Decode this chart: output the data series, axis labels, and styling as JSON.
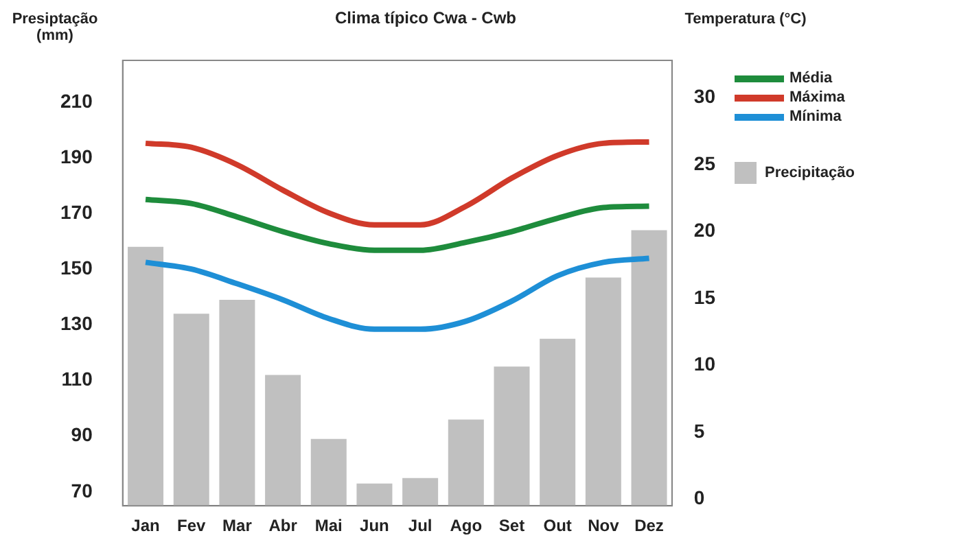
{
  "chart_data": {
    "type": "bar",
    "title": "Clima típico Cwa - Cwb",
    "ylabel": "Presiptação (mm)",
    "y2label": "Temperatura (°C)",
    "categories": [
      "Jan",
      "Fev",
      "Mar",
      "Abr",
      "Mai",
      "Jun",
      "Jul",
      "Ago",
      "Set",
      "Out",
      "Nov",
      "Dez"
    ],
    "series": [
      {
        "name": "Média",
        "type": "line",
        "axis": "y2",
        "color": "#1e8c3c",
        "values": [
          22.4,
          22.1,
          21.1,
          20,
          19.1,
          18.6,
          18.6,
          19.2,
          20,
          21,
          21.8,
          21.9
        ]
      },
      {
        "name": "Máxima",
        "type": "line",
        "axis": "y2",
        "color": "#d03a2a",
        "values": [
          26.6,
          26.3,
          25,
          23.1,
          21.4,
          20.5,
          20.5,
          21.9,
          24,
          25.7,
          26.6,
          26.7
        ]
      },
      {
        "name": "Mínima",
        "type": "line",
        "axis": "y2",
        "color": "#1e8fd6",
        "values": [
          17.7,
          17.2,
          16.1,
          14.9,
          13.5,
          12.7,
          12.7,
          13.3,
          14.8,
          16.7,
          17.7,
          18
        ]
      },
      {
        "name": "Precipitação",
        "color": "#c0c0c0",
        "values": [
          158,
          134,
          139,
          112,
          89,
          73,
          75,
          96,
          115,
          125,
          147,
          164
        ]
      }
    ],
    "ylim": [
      65,
      225
    ],
    "yticks": [
      70,
      90,
      110,
      130,
      150,
      170,
      190,
      210
    ],
    "y2lim": [
      -0.5,
      32.8
    ],
    "y2ticks": [
      0,
      5,
      10,
      15,
      20,
      25,
      30
    ],
    "grid": false,
    "legend": "right",
    "marker": "none",
    "line_style": "solid"
  }
}
